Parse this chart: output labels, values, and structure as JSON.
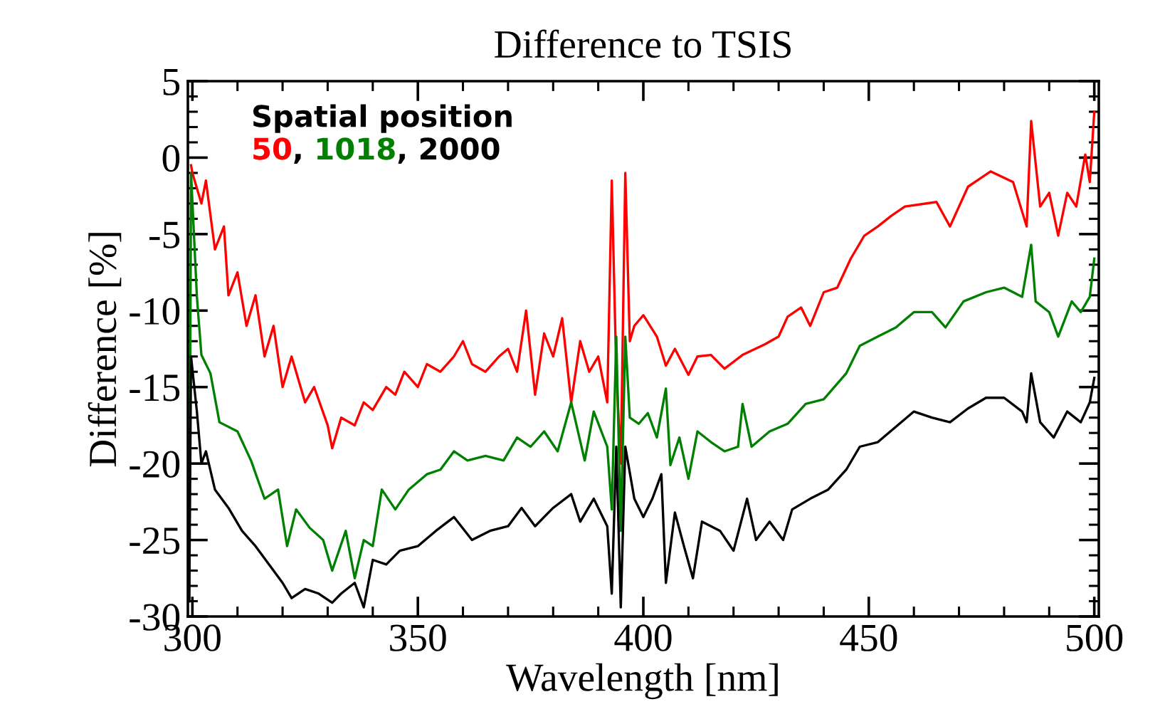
{
  "chart_data": {
    "type": "line",
    "title": "Difference to TSIS",
    "xlabel": "Wavelength [nm]",
    "ylabel": "Difference [%]",
    "legend_title": "Spatial position",
    "legend": "top left",
    "annotations": [
      ", ",
      ", "
    ],
    "grid": false,
    "marker": "none",
    "line_style": "solid",
    "xlim": [
      299,
      501
    ],
    "ylim": [
      -30,
      5
    ],
    "xticks": [
      300,
      350,
      400,
      450,
      500
    ],
    "yticks": [
      5,
      0,
      -5,
      -10,
      -15,
      -20,
      -25,
      -30
    ],
    "series": [
      {
        "name": "50",
        "color": "#ff0000",
        "x": [
          299.7,
          300,
          302,
          303,
          305,
          307,
          308,
          310,
          312,
          314,
          316,
          318,
          320,
          322,
          325,
          327,
          330,
          331,
          333,
          336,
          338,
          340,
          343,
          345,
          347,
          350,
          352,
          355,
          358,
          360,
          362,
          365,
          368,
          370,
          372,
          374,
          376,
          378,
          380,
          382,
          384,
          386,
          388,
          390,
          392,
          393,
          394,
          395,
          396,
          397,
          398,
          400,
          403,
          405,
          407,
          410,
          412,
          415,
          418,
          422,
          427,
          430,
          432,
          435,
          437,
          440,
          443,
          446,
          449,
          452,
          455,
          458,
          465,
          468,
          472,
          477,
          482,
          485,
          486,
          488,
          490,
          492,
          494,
          496,
          498,
          499,
          500
        ],
        "values": [
          -0.5,
          -1,
          -3,
          -1.5,
          -6,
          -4.5,
          -9,
          -7.5,
          -11,
          -9,
          -13,
          -11,
          -15,
          -13,
          -16,
          -15,
          -17.5,
          -19,
          -17,
          -17.5,
          -16,
          -16.5,
          -15,
          -15.5,
          -14,
          -15,
          -13.5,
          -14,
          -13,
          -12,
          -13.5,
          -14,
          -13,
          -12.5,
          -14,
          -10,
          -15.5,
          -11.5,
          -13,
          -10.5,
          -16,
          -12,
          -14,
          -13,
          -16,
          -1.5,
          -14,
          -20,
          -1,
          -12,
          -11,
          -10.3,
          -11.7,
          -13.6,
          -12.5,
          -14.2,
          -13,
          -12.9,
          -13.8,
          -12.9,
          -12.2,
          -11.7,
          -10.4,
          -9.8,
          -11,
          -8.8,
          -8.5,
          -6.6,
          -5.1,
          -4.5,
          -3.8,
          -3.2,
          -2.9,
          -4.5,
          -1.9,
          -0.9,
          -1.6,
          -4.5,
          2.4,
          -3.2,
          -2.3,
          -5.1,
          -2.3,
          -3.2,
          0.2,
          -1.6,
          3
        ]
      },
      {
        "name": "1018",
        "color": "#008000",
        "x": [
          299.3,
          299.7,
          301,
          302,
          304,
          306,
          310,
          313,
          316,
          319,
          321,
          323,
          326,
          329,
          331,
          334,
          336,
          338,
          340,
          342,
          345,
          348,
          352,
          355,
          358,
          361,
          365,
          369,
          372,
          375,
          378,
          381,
          384,
          387,
          389,
          392,
          393,
          394,
          395,
          396,
          397,
          399,
          401,
          403,
          405,
          406,
          408,
          410,
          412,
          415,
          418,
          421,
          422,
          424,
          428,
          432,
          436,
          440,
          445,
          448,
          452,
          456,
          460,
          464,
          467,
          471,
          476,
          480,
          484,
          486,
          487,
          490,
          492,
          495,
          497,
          499,
          500
        ],
        "values": [
          -29,
          -1,
          -9.1,
          -12.9,
          -14.1,
          -17.3,
          -17.9,
          -19.8,
          -22.3,
          -21.7,
          -25.4,
          -23,
          -24.2,
          -25,
          -27,
          -24.4,
          -27.5,
          -25,
          -25.4,
          -21.7,
          -23,
          -21.7,
          -20.7,
          -20.4,
          -19.2,
          -19.8,
          -19.5,
          -19.8,
          -18.3,
          -18.9,
          -17.9,
          -19.2,
          -16,
          -19.8,
          -16.6,
          -18.9,
          -23,
          -11.7,
          -24.4,
          -11.7,
          -17,
          -17.4,
          -16.7,
          -18.3,
          -15.1,
          -20.1,
          -18.3,
          -21,
          -17.9,
          -18.6,
          -19.2,
          -18.9,
          -16.1,
          -18.9,
          -17.9,
          -17.4,
          -16.1,
          -15.8,
          -14.1,
          -12.3,
          -11.7,
          -11.1,
          -10.1,
          -10.1,
          -11.1,
          -9.4,
          -8.8,
          -8.5,
          -9.1,
          -5.7,
          -9.4,
          -10.1,
          -11.7,
          -9.4,
          -10.1,
          -9.1,
          -6.6
        ]
      },
      {
        "name": "2000",
        "color": "#000000",
        "x": [
          299.3,
          299.7,
          301,
          302,
          303,
          305,
          308,
          311,
          314,
          317,
          320,
          322,
          325,
          328,
          331,
          333,
          336,
          338,
          340,
          343,
          346,
          350,
          354,
          358,
          362,
          366,
          370,
          373,
          376,
          380,
          384,
          386,
          389,
          392,
          393,
          394,
          395,
          396,
          398,
          400,
          402,
          404,
          405,
          407,
          409,
          411,
          413,
          417,
          420,
          423,
          425,
          428,
          431,
          433,
          437,
          441,
          445,
          448,
          452,
          456,
          460,
          464,
          468,
          472,
          476,
          480,
          484,
          485,
          486,
          488,
          491,
          494,
          497,
          499,
          500
        ],
        "values": [
          -29,
          -13,
          -16.6,
          -20,
          -19.2,
          -21.7,
          -22.9,
          -24.4,
          -25.4,
          -26.6,
          -27.8,
          -28.8,
          -28.2,
          -28.5,
          -29.1,
          -28.5,
          -27.8,
          -29.4,
          -26.3,
          -26.6,
          -25.7,
          -25.4,
          -24.4,
          -23.5,
          -25,
          -24.4,
          -24.1,
          -22.9,
          -24.1,
          -22.9,
          -22,
          -23.8,
          -22.3,
          -24.1,
          -28.5,
          -18.9,
          -29.4,
          -18.9,
          -22.3,
          -23.5,
          -22.3,
          -20.7,
          -27.8,
          -23.2,
          -25.4,
          -27.5,
          -23.8,
          -24.4,
          -25.7,
          -22.3,
          -25,
          -23.8,
          -25,
          -23,
          -22.3,
          -21.7,
          -20.4,
          -18.9,
          -18.6,
          -17.6,
          -16.6,
          -17,
          -17.3,
          -16.4,
          -15.7,
          -15.7,
          -16.6,
          -17.3,
          -14.1,
          -17.3,
          -18.3,
          -16.6,
          -17.3,
          -16,
          -14.4
        ]
      }
    ]
  }
}
